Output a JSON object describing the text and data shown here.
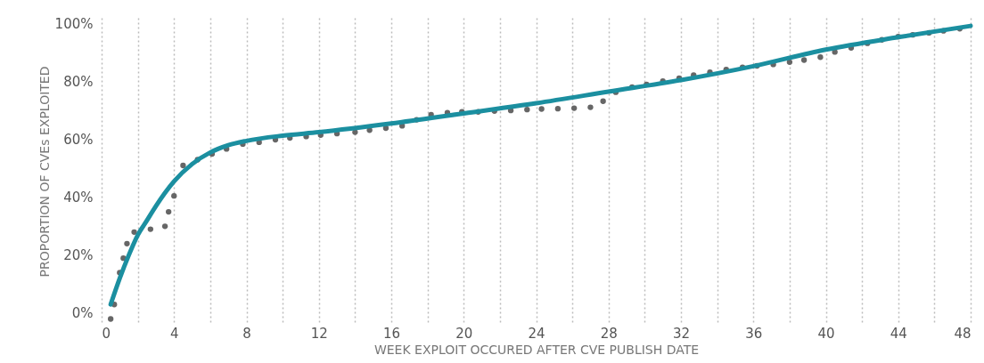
{
  "chart_data": {
    "type": "scatter",
    "xlabel": "WEEK EXPLOIT OCCURED AFTER CVE PUBLISH DATE",
    "ylabel": "PROPORTION OF CVEs EXPLOITED",
    "xlim": [
      0,
      48
    ],
    "ylim": [
      -4,
      102
    ],
    "xticks": [
      0,
      {
        "value": 2,
        "label": null
      },
      4,
      {
        "value": 6,
        "label": null
      },
      8,
      {
        "value": 10,
        "label": null
      },
      12,
      {
        "value": 14,
        "label": null
      },
      16,
      {
        "value": 18,
        "label": null
      },
      20,
      {
        "value": 22,
        "label": null
      },
      24,
      {
        "value": 26,
        "label": null
      },
      28,
      {
        "value": 30,
        "label": null
      },
      32,
      {
        "value": 34,
        "label": null
      },
      36,
      {
        "value": 38,
        "label": null
      },
      40,
      {
        "value": 42,
        "label": null
      },
      44,
      {
        "value": 46,
        "label": null
      },
      48
    ],
    "yticks": [
      {
        "value": 0,
        "label": "0%"
      },
      {
        "value": 20,
        "label": "20%"
      },
      {
        "value": 40,
        "label": "40%"
      },
      {
        "value": 60,
        "label": "60%"
      },
      {
        "value": 80,
        "label": "80%"
      },
      {
        "value": 100,
        "label": "100%"
      }
    ],
    "grid": "x",
    "series": [
      {
        "marker": "circle",
        "color": "#666666",
        "x": [
          0.5,
          0.7,
          1.0,
          1.2,
          1.4,
          1.8,
          2.7,
          3.5,
          3.7,
          4.0,
          4.5,
          5.3,
          6.1,
          6.9,
          7.8,
          8.7,
          9.6,
          10.4,
          11.3,
          12.1,
          13.0,
          14.0,
          14.8,
          15.7,
          16.6,
          17.4,
          18.2,
          19.1,
          19.9,
          20.8,
          21.7,
          22.6,
          23.5,
          24.3,
          25.2,
          26.1,
          27.0,
          27.7,
          28.4,
          29.3,
          30.1,
          31.0,
          31.9,
          32.7,
          33.6,
          34.5,
          35.4,
          36.2,
          37.1,
          38.0,
          38.8,
          39.7,
          40.5,
          41.4,
          42.3,
          43.1,
          44.0,
          44.8,
          45.7,
          46.5,
          47.4
        ],
        "values": [
          -2,
          3,
          14,
          19,
          24,
          28,
          29,
          30,
          35,
          40.5,
          51,
          53,
          55,
          56.7,
          58.4,
          59,
          59.9,
          60.5,
          61,
          61.5,
          62,
          62.5,
          63.2,
          63.9,
          64.7,
          66.8,
          68.5,
          69.2,
          69.5,
          69.5,
          69.8,
          70,
          70.3,
          70.5,
          70.6,
          70.8,
          71.1,
          73.2,
          76.3,
          78.1,
          79,
          80.1,
          81.1,
          82.2,
          83.2,
          84.1,
          84.9,
          85.4,
          85.9,
          86.7,
          87.4,
          88.4,
          90.2,
          91.6,
          93.2,
          94.4,
          95.5,
          96.1,
          96.8,
          97.5,
          98.2
        ]
      },
      {
        "type": "line",
        "marker": "none",
        "line_style": "solid",
        "color": "#1b8fa0",
        "x": [
          0.5,
          1,
          1.5,
          2,
          2.5,
          3,
          4,
          5,
          6,
          7,
          8,
          10,
          12,
          16,
          20,
          24,
          28,
          32,
          36,
          40,
          44,
          48
        ],
        "values": [
          3,
          12,
          20,
          27,
          32,
          37,
          45.5,
          51.5,
          55.5,
          58,
          59.5,
          61.3,
          62.5,
          65.5,
          69,
          72.5,
          76.5,
          80.5,
          85.3,
          91,
          95.3,
          99.2
        ]
      }
    ]
  }
}
